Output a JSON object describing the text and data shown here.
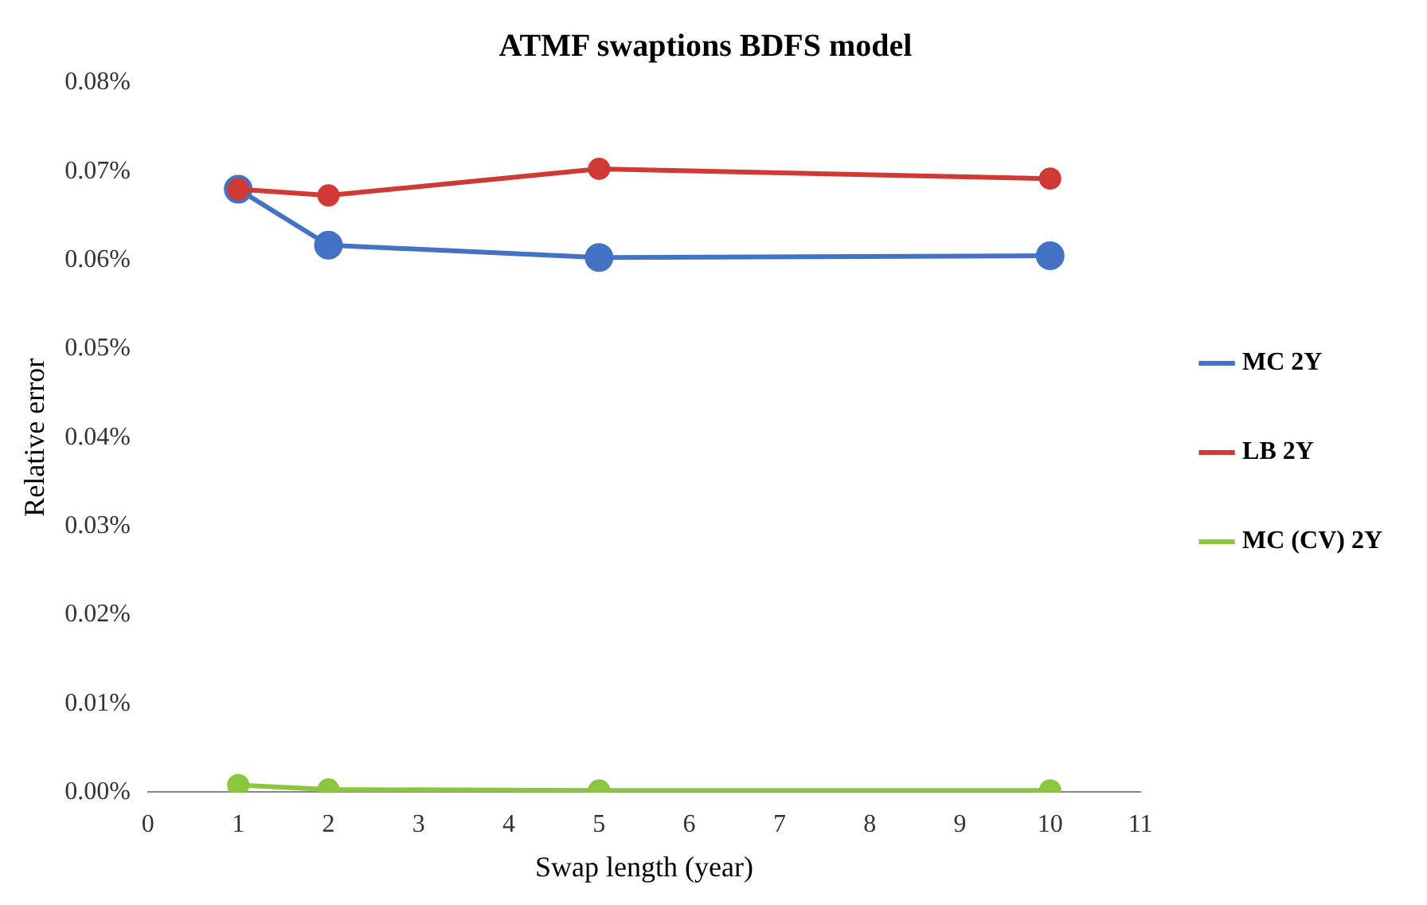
{
  "chart_data": {
    "type": "line",
    "title": "ATMF swaptions BDFS model",
    "xlabel": "Swap length (year)",
    "ylabel": "Relative error",
    "x": [
      1,
      2,
      5,
      10
    ],
    "series": [
      {
        "name": "MC 2Y",
        "color": "#4472c4",
        "values": [
          0.068,
          0.0617,
          0.0603,
          0.0605
        ]
      },
      {
        "name": "LB 2Y",
        "color": "#d03a34",
        "values": [
          0.068,
          0.0673,
          0.0703,
          0.0692
        ]
      },
      {
        "name": "MC (CV) 2Y",
        "color": "#8cc63f",
        "values": [
          0.0008,
          0.0003,
          0.0002,
          0.0002
        ]
      }
    ],
    "xlim": [
      0,
      11
    ],
    "xticks": [
      0,
      1,
      2,
      3,
      4,
      5,
      6,
      7,
      8,
      9,
      10,
      11
    ],
    "ylim": [
      0,
      0.08
    ],
    "yticks": [
      {
        "value": 0,
        "label": "0.00%"
      },
      {
        "value": 0.01,
        "label": "0.01%"
      },
      {
        "value": 0.02,
        "label": "0.02%"
      },
      {
        "value": 0.03,
        "label": "0.03%"
      },
      {
        "value": 0.04,
        "label": "0.04%"
      },
      {
        "value": 0.05,
        "label": "0.05%"
      },
      {
        "value": 0.06,
        "label": "0.06%"
      },
      {
        "value": 0.07,
        "label": "0.07%"
      },
      {
        "value": 0.08,
        "label": "0.08%"
      }
    ],
    "grid": false,
    "legend": "right",
    "marker": "circle",
    "line_style": "solid"
  }
}
